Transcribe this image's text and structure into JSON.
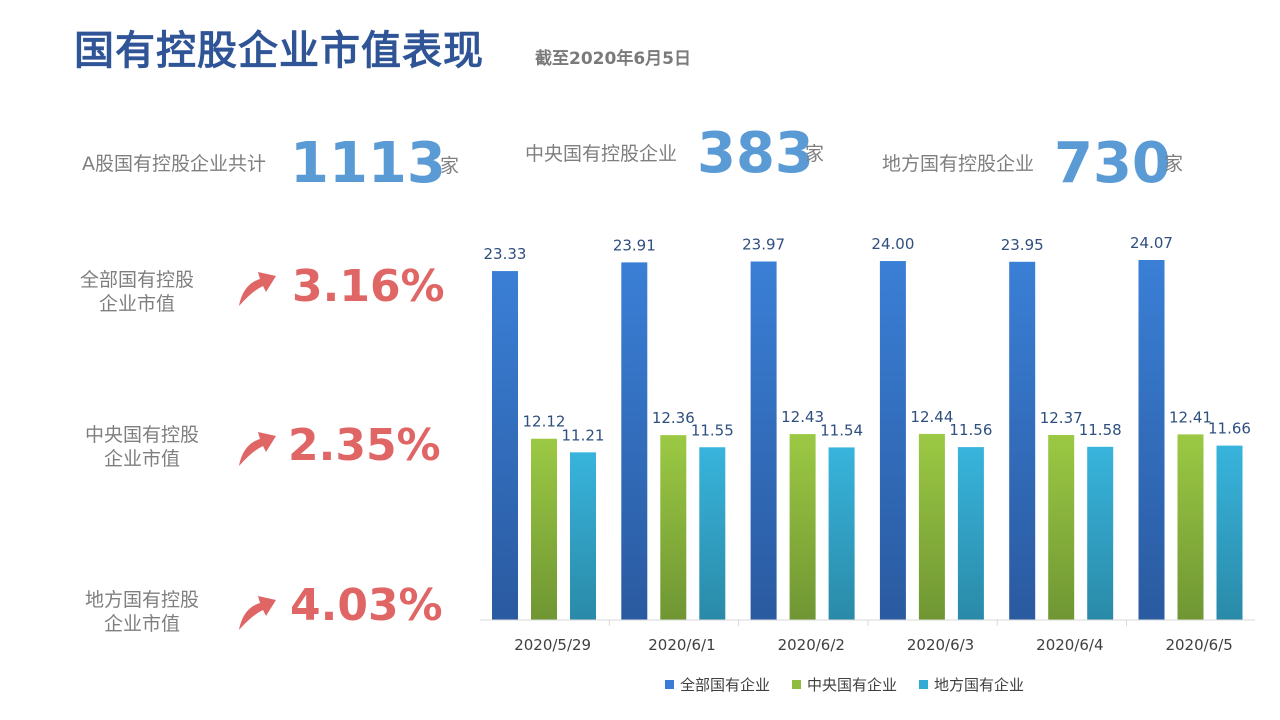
{
  "header": {
    "title": "国有控股企业市值表现",
    "subtitle": "截至2020年6月5日"
  },
  "stats": [
    {
      "label": "A股国有控股企业共计",
      "value": "1113",
      "unit": "家"
    },
    {
      "label": "中央国有控股企业",
      "value": "383",
      "unit": "家"
    },
    {
      "label": "地方国有控股企业",
      "value": "730",
      "unit": "家"
    }
  ],
  "kpis": [
    {
      "label_line1": "全部国有控股",
      "label_line2": "企业市值",
      "value": "3.16%",
      "icon": "arrow-up-icon"
    },
    {
      "label_line1": "中央国有控股",
      "label_line2": "企业市值",
      "value": "2.35%",
      "icon": "arrow-up-icon"
    },
    {
      "label_line1": "地方国有控股",
      "label_line2": "企业市值",
      "value": "4.03%",
      "icon": "arrow-up-icon"
    }
  ],
  "colors": {
    "title": "#2f5597",
    "stat_number": "#5b9bd5",
    "kpi_value": "#e06666",
    "series_all": "#3a7bd5",
    "series_central": "#8fbc3f",
    "series_local": "#32acd2"
  },
  "chart_data": {
    "type": "bar",
    "categories": [
      "2020/5/29",
      "2020/6/1",
      "2020/6/2",
      "2020/6/3",
      "2020/6/4",
      "2020/6/5"
    ],
    "series": [
      {
        "name": "全部国有企业",
        "values": [
          23.33,
          23.91,
          23.97,
          24.0,
          23.95,
          24.07
        ]
      },
      {
        "name": "中央国有企业",
        "values": [
          12.12,
          12.36,
          12.43,
          12.44,
          12.37,
          12.41
        ]
      },
      {
        "name": "地方国有企业",
        "values": [
          11.21,
          11.55,
          11.54,
          11.56,
          11.58,
          11.66
        ]
      }
    ],
    "ylim": [
      0,
      24.07
    ],
    "grid": false,
    "legend": "bottom",
    "data_labels": true
  }
}
